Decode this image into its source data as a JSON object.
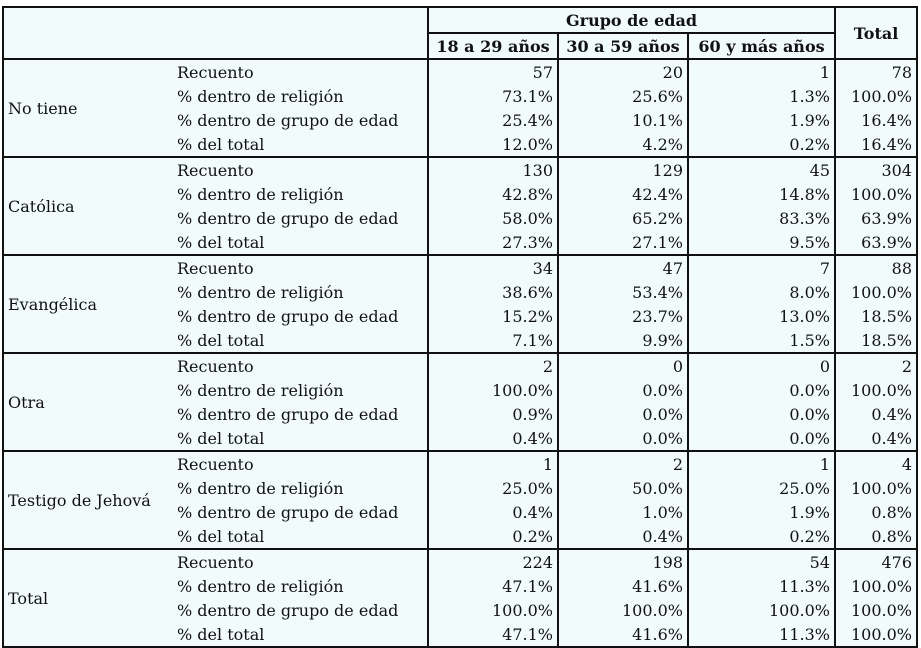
{
  "header": {
    "group_label": "Grupo de edad",
    "total_label": "Total",
    "columns": [
      "18 a 29 años",
      "30 a 59 años",
      "60 y más años"
    ]
  },
  "stat_labels": [
    "Recuento",
    "% dentro de religión",
    "% dentro de grupo de edad",
    "% del total"
  ],
  "groups": [
    {
      "name": "No tiene",
      "rows": [
        [
          "57",
          "20",
          "1",
          "78"
        ],
        [
          "73.1%",
          "25.6%",
          "1.3%",
          "100.0%"
        ],
        [
          "25.4%",
          "10.1%",
          "1.9%",
          "16.4%"
        ],
        [
          "12.0%",
          "4.2%",
          "0.2%",
          "16.4%"
        ]
      ]
    },
    {
      "name": "Católica",
      "rows": [
        [
          "130",
          "129",
          "45",
          "304"
        ],
        [
          "42.8%",
          "42.4%",
          "14.8%",
          "100.0%"
        ],
        [
          "58.0%",
          "65.2%",
          "83.3%",
          "63.9%"
        ],
        [
          "27.3%",
          "27.1%",
          "9.5%",
          "63.9%"
        ]
      ]
    },
    {
      "name": "Evangélica",
      "rows": [
        [
          "34",
          "47",
          "7",
          "88"
        ],
        [
          "38.6%",
          "53.4%",
          "8.0%",
          "100.0%"
        ],
        [
          "15.2%",
          "23.7%",
          "13.0%",
          "18.5%"
        ],
        [
          "7.1%",
          "9.9%",
          "1.5%",
          "18.5%"
        ]
      ]
    },
    {
      "name": "Otra",
      "rows": [
        [
          "2",
          "0",
          "0",
          "2"
        ],
        [
          "100.0%",
          "0.0%",
          "0.0%",
          "100.0%"
        ],
        [
          "0.9%",
          "0.0%",
          "0.0%",
          "0.4%"
        ],
        [
          "0.4%",
          "0.0%",
          "0.0%",
          "0.4%"
        ]
      ]
    },
    {
      "name": "Testigo de Jehová",
      "rows": [
        [
          "1",
          "2",
          "1",
          "4"
        ],
        [
          "25.0%",
          "50.0%",
          "25.0%",
          "100.0%"
        ],
        [
          "0.4%",
          "1.0%",
          "1.9%",
          "0.8%"
        ],
        [
          "0.2%",
          "0.4%",
          "0.2%",
          "0.8%"
        ]
      ]
    },
    {
      "name": "Total",
      "rows": [
        [
          "224",
          "198",
          "54",
          "476"
        ],
        [
          "47.1%",
          "41.6%",
          "11.3%",
          "100.0%"
        ],
        [
          "100.0%",
          "100.0%",
          "100.0%",
          "100.0%"
        ],
        [
          "47.1%",
          "41.6%",
          "11.3%",
          "100.0%"
        ]
      ]
    }
  ]
}
